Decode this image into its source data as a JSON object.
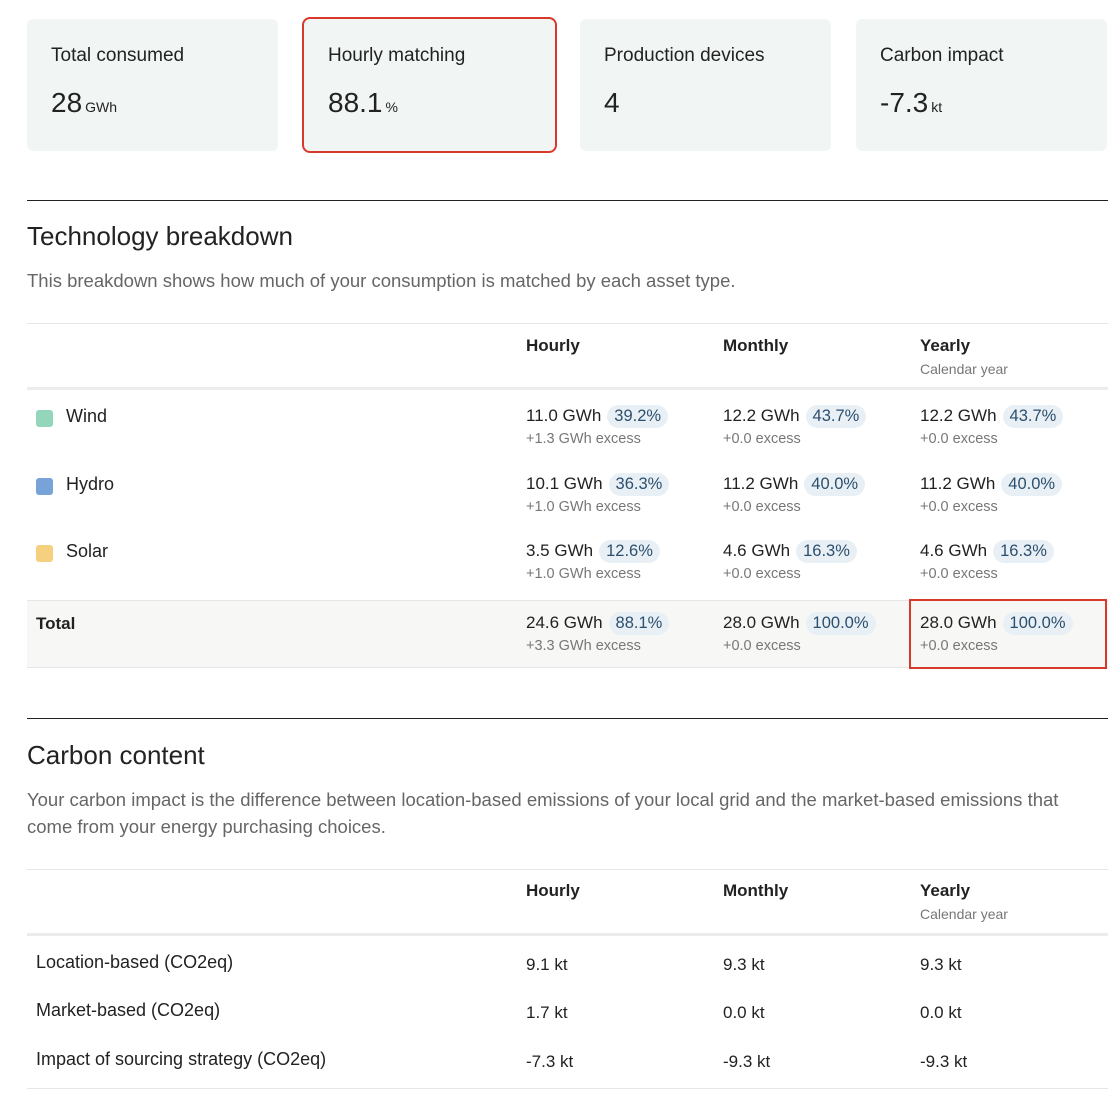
{
  "cards": [
    {
      "label": "Total consumed",
      "value": "28",
      "unit": "GWh",
      "highlighted": false
    },
    {
      "label": "Hourly matching",
      "value": "88.1",
      "unit": "%",
      "highlighted": true
    },
    {
      "label": "Production devices",
      "value": "4",
      "unit": "",
      "highlighted": false
    },
    {
      "label": "Carbon impact",
      "value": "-7.3",
      "unit": "kt",
      "highlighted": false
    }
  ],
  "tech": {
    "title": "Technology breakdown",
    "description": "This breakdown shows how much of your consumption is matched by each asset type.",
    "columns": {
      "hourly": "Hourly",
      "monthly": "Monthly",
      "yearly": "Yearly",
      "yearly_sub": "Calendar year"
    },
    "rows": [
      {
        "name": "Wind",
        "color": "#93d6bb",
        "hourly": {
          "v": "11.0 GWh",
          "p": "39.2%",
          "e": "+1.3 GWh excess"
        },
        "monthly": {
          "v": "12.2 GWh",
          "p": "43.7%",
          "e": "+0.0 excess"
        },
        "yearly": {
          "v": "12.2 GWh",
          "p": "43.7%",
          "e": "+0.0 excess"
        }
      },
      {
        "name": "Hydro",
        "color": "#78a3d8",
        "hourly": {
          "v": "10.1 GWh",
          "p": "36.3%",
          "e": "+1.0 GWh excess"
        },
        "monthly": {
          "v": "11.2 GWh",
          "p": "40.0%",
          "e": "+0.0 excess"
        },
        "yearly": {
          "v": "11.2 GWh",
          "p": "40.0%",
          "e": "+0.0 excess"
        }
      },
      {
        "name": "Solar",
        "color": "#f5d07f",
        "hourly": {
          "v": "3.5 GWh",
          "p": "12.6%",
          "e": "+1.0 GWh excess"
        },
        "monthly": {
          "v": "4.6 GWh",
          "p": "16.3%",
          "e": "+0.0 excess"
        },
        "yearly": {
          "v": "4.6 GWh",
          "p": "16.3%",
          "e": "+0.0 excess"
        }
      }
    ],
    "total": {
      "name": "Total",
      "hourly": {
        "v": "24.6 GWh",
        "p": "88.1%",
        "e": "+3.3 GWh excess"
      },
      "monthly": {
        "v": "28.0 GWh",
        "p": "100.0%",
        "e": "+0.0 excess"
      },
      "yearly": {
        "v": "28.0 GWh",
        "p": "100.0%",
        "e": "+0.0 excess"
      }
    }
  },
  "carbon": {
    "title": "Carbon content",
    "description": "Your carbon impact is the difference between location-based emissions of your local grid and the market-based emissions that come from your energy purchasing choices.",
    "columns": {
      "hourly": "Hourly",
      "monthly": "Monthly",
      "yearly": "Yearly",
      "yearly_sub": "Calendar year"
    },
    "rows": [
      {
        "name": "Location-based (CO2eq)",
        "hourly": "9.1 kt",
        "monthly": "9.3 kt",
        "yearly": "9.3 kt"
      },
      {
        "name": "Market-based (CO2eq)",
        "hourly": "1.7 kt",
        "monthly": "0.0 kt",
        "yearly": "0.0 kt"
      },
      {
        "name": "Impact of sourcing strategy (CO2eq)",
        "hourly": "-7.3 kt",
        "monthly": "-9.3 kt",
        "yearly": "-9.3 kt"
      }
    ]
  }
}
